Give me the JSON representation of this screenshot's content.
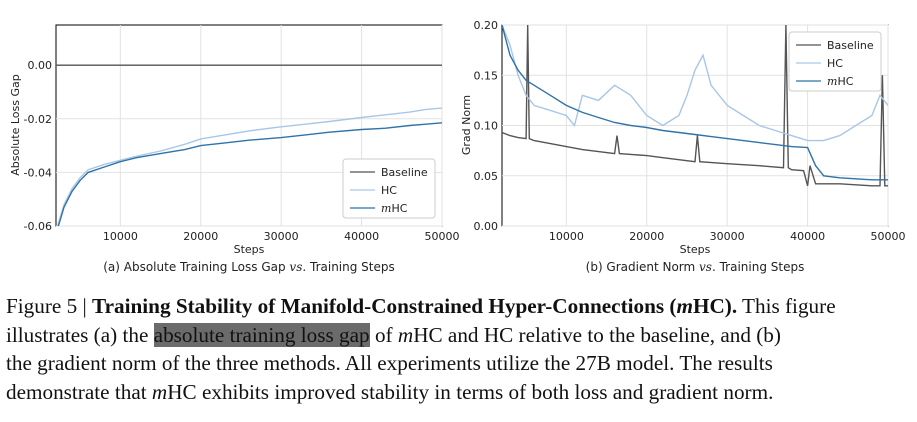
{
  "chart_data": [
    {
      "type": "line",
      "caption": "(a) Absolute Training Loss Gap vs. Training Steps",
      "caption_parts": [
        "(a) Absolute Training Loss Gap ",
        "vs.",
        " Training Steps"
      ],
      "xlabel": "Steps",
      "ylabel": "Absolute Loss Gap",
      "xlim": [
        2000,
        50000
      ],
      "ylim": [
        -0.06,
        0.015
      ],
      "xticks": [
        10000,
        20000,
        30000,
        40000,
        50000
      ],
      "xtick_labels": [
        "10000",
        "20000",
        "30000",
        "40000",
        "50000"
      ],
      "yticks": [
        0.0,
        -0.02,
        -0.04,
        -0.06
      ],
      "ytick_labels": [
        "0.00",
        "-0.02",
        "-0.04",
        "-0.06"
      ],
      "grid": true,
      "legend_position": "bottom-right",
      "legend": [
        "Baseline",
        "HC",
        "mHC"
      ],
      "series": [
        {
          "name": "Baseline",
          "color": "#555555",
          "x": [
            2000,
            50000
          ],
          "y": [
            0.0,
            0.0
          ]
        },
        {
          "name": "HC",
          "color": "#a9c6e6",
          "x": [
            2000,
            3000,
            4000,
            5000,
            6000,
            8000,
            10000,
            12000,
            15000,
            18000,
            20000,
            23000,
            26000,
            30000,
            33000,
            36000,
            40000,
            43000,
            46000,
            48000,
            50000
          ],
          "y": [
            -0.062,
            -0.052,
            -0.046,
            -0.042,
            -0.039,
            -0.037,
            -0.0355,
            -0.034,
            -0.032,
            -0.0295,
            -0.0275,
            -0.026,
            -0.0245,
            -0.023,
            -0.022,
            -0.021,
            -0.0195,
            -0.0185,
            -0.0175,
            -0.0165,
            -0.016
          ]
        },
        {
          "name": "mHC",
          "color": "#2f73a8",
          "x": [
            2000,
            3000,
            4000,
            5000,
            6000,
            8000,
            10000,
            12000,
            15000,
            18000,
            20000,
            23000,
            26000,
            30000,
            33000,
            36000,
            40000,
            43000,
            46000,
            48000,
            50000
          ],
          "y": [
            -0.063,
            -0.053,
            -0.047,
            -0.043,
            -0.04,
            -0.038,
            -0.036,
            -0.0345,
            -0.033,
            -0.0315,
            -0.03,
            -0.029,
            -0.028,
            -0.027,
            -0.026,
            -0.025,
            -0.024,
            -0.0235,
            -0.0225,
            -0.022,
            -0.0215
          ]
        }
      ]
    },
    {
      "type": "line",
      "caption": "(b) Gradient Norm vs. Training Steps",
      "caption_parts": [
        "(b) Gradient Norm ",
        "vs.",
        " Training Steps"
      ],
      "xlabel": "Steps",
      "ylabel": "Grad Norm",
      "xlim": [
        2000,
        50000
      ],
      "ylim": [
        0.0,
        0.2
      ],
      "xticks": [
        10000,
        20000,
        30000,
        40000,
        50000
      ],
      "xtick_labels": [
        "10000",
        "20000",
        "30000",
        "40000",
        "50000"
      ],
      "yticks": [
        0.0,
        0.05,
        0.1,
        0.15,
        0.2
      ],
      "ytick_labels": [
        "0.00",
        "0.05",
        "0.10",
        "0.15",
        "0.20"
      ],
      "grid": true,
      "legend_position": "top-right",
      "legend": [
        "Baseline",
        "HC",
        "mHC"
      ],
      "series": [
        {
          "name": "Baseline",
          "color": "#555555",
          "x": [
            2000,
            3000,
            4000,
            5000,
            5200,
            5400,
            6000,
            8000,
            10000,
            12000,
            14000,
            16000,
            16300,
            16600,
            20000,
            22000,
            24000,
            26000,
            26300,
            26600,
            30000,
            34000,
            37000,
            37300,
            37600,
            38000,
            39500,
            40000,
            40300,
            41000,
            44000,
            46000,
            48000,
            49000,
            49300,
            49600,
            50000
          ],
          "y": [
            0.093,
            0.09,
            0.088,
            0.087,
            0.2,
            0.087,
            0.085,
            0.082,
            0.079,
            0.076,
            0.074,
            0.072,
            0.09,
            0.072,
            0.07,
            0.068,
            0.066,
            0.064,
            0.09,
            0.064,
            0.062,
            0.06,
            0.058,
            0.2,
            0.058,
            0.056,
            0.055,
            0.04,
            0.06,
            0.042,
            0.042,
            0.041,
            0.04,
            0.04,
            0.15,
            0.04,
            0.04
          ]
        },
        {
          "name": "HC",
          "color": "#a9c6e6",
          "x": [
            2000,
            3000,
            4000,
            5000,
            6000,
            8000,
            10000,
            11000,
            12000,
            14000,
            16000,
            18000,
            20000,
            22000,
            24000,
            25000,
            26000,
            27000,
            28000,
            30000,
            32000,
            34000,
            36000,
            38000,
            40000,
            42000,
            44000,
            46000,
            48000,
            49000,
            50000
          ],
          "y": [
            0.2,
            0.18,
            0.15,
            0.13,
            0.12,
            0.115,
            0.11,
            0.1,
            0.13,
            0.125,
            0.14,
            0.13,
            0.11,
            0.1,
            0.11,
            0.13,
            0.155,
            0.17,
            0.14,
            0.12,
            0.11,
            0.1,
            0.095,
            0.09,
            0.085,
            0.085,
            0.09,
            0.1,
            0.11,
            0.13,
            0.12
          ]
        },
        {
          "name": "mHC",
          "color": "#2f73a8",
          "x": [
            2000,
            3000,
            4000,
            5000,
            6000,
            8000,
            10000,
            12000,
            14000,
            16000,
            18000,
            20000,
            22000,
            24000,
            26000,
            28000,
            30000,
            32000,
            34000,
            36000,
            38000,
            40000,
            41000,
            42000,
            44000,
            46000,
            48000,
            50000
          ],
          "y": [
            0.2,
            0.17,
            0.155,
            0.145,
            0.14,
            0.13,
            0.12,
            0.113,
            0.108,
            0.103,
            0.1,
            0.098,
            0.095,
            0.093,
            0.091,
            0.089,
            0.087,
            0.085,
            0.083,
            0.081,
            0.079,
            0.078,
            0.06,
            0.05,
            0.048,
            0.047,
            0.046,
            0.046
          ]
        }
      ]
    }
  ],
  "figure_caption": {
    "figure_label": "Figure 5 | ",
    "bold_title_pre": "Training Stability of Manifold-Constrained Hyper-Connections (",
    "bold_title_m": "m",
    "bold_title_post": "HC).",
    "line1_tail": " This figure",
    "line2_pre": "illustrates (a) the ",
    "highlighted": "absolute training loss gap",
    "line2_mid": " of ",
    "m1": "m",
    "line2_post": "HC and HC relative to the baseline, and (b)",
    "line3": "the gradient norm of the three methods.  All experiments utilize the 27B model.  The results",
    "line4_pre": "demonstrate that ",
    "m2": "m",
    "line4_post": "HC exhibits improved stability in terms of both loss and gradient norm."
  }
}
